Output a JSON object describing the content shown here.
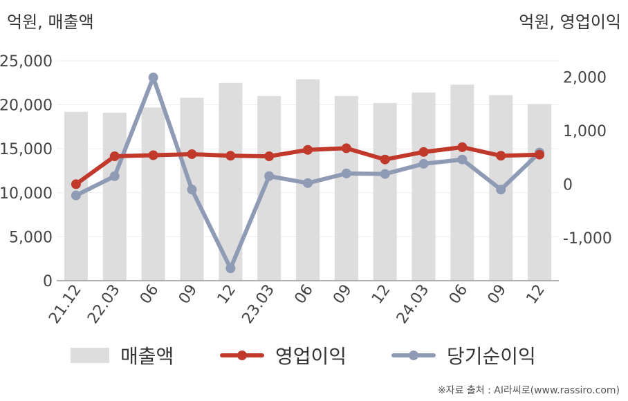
{
  "units": {
    "left": "억원, 매출액",
    "right": "억원, 영업이익"
  },
  "source": "※자료 출처 : AI라씨로(www.rassiro.com)",
  "legend": [
    {
      "label": "매출액",
      "kind": "bar",
      "color": "#dddddd"
    },
    {
      "label": "영업이익",
      "kind": "line",
      "color": "#c0392b"
    },
    {
      "label": "당기순이익",
      "kind": "line",
      "color": "#8f9bb5"
    }
  ],
  "chart_data": {
    "type": "bar+line",
    "categories": [
      "21.12",
      "22.03",
      "06",
      "09",
      "12",
      "23.03",
      "06",
      "09",
      "12",
      "24.03",
      "06",
      "09",
      "12"
    ],
    "left_axis": {
      "ylim": [
        0,
        25000
      ],
      "ticks": [
        "25,000",
        "20,000",
        "15,000",
        "10,000",
        "5,000",
        "0"
      ]
    },
    "right_axis": {
      "ylim": [
        -1800,
        2300
      ],
      "ticks": [
        "2,000",
        "1,000",
        "0",
        "-1,000"
      ],
      "tick_values": [
        2000,
        1000,
        0,
        -1000
      ]
    },
    "series": [
      {
        "name": "매출액",
        "type": "bar",
        "axis": "left",
        "color": "#dddddd",
        "values": [
          19200,
          19100,
          19700,
          20800,
          22500,
          21000,
          22900,
          21000,
          20200,
          21400,
          22300,
          21100,
          20100
        ]
      },
      {
        "name": "영업이익",
        "type": "line",
        "axis": "right",
        "color": "#c0392b",
        "values": [
          0,
          520,
          540,
          560,
          530,
          520,
          640,
          670,
          460,
          600,
          690,
          530,
          550
        ]
      },
      {
        "name": "당기순이익",
        "type": "line",
        "axis": "right",
        "color": "#8f9bb5",
        "values": [
          -210,
          150,
          1990,
          -100,
          -1570,
          150,
          20,
          200,
          190,
          380,
          460,
          -100,
          590
        ]
      }
    ],
    "grid": true,
    "legend_position": "bottom"
  }
}
